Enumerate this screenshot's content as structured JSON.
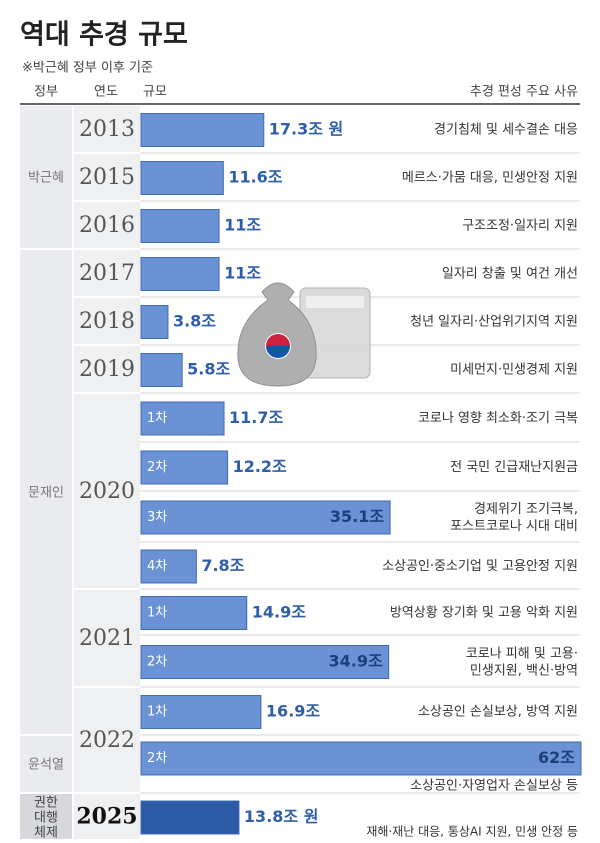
{
  "chart_data": {
    "type": "bar",
    "title": "역대 추경 규모",
    "subtitle": "※박근혜 정부 이후 기준",
    "headers": [
      "정부",
      "연도",
      "규모",
      "추경 편성 주요 사유"
    ],
    "color": "#6a92d4",
    "highlight_color": "#2c5aa6",
    "label_color": "#2f5ea8",
    "rows": [
      {
        "government": "박근혜",
        "year": "2013",
        "round": null,
        "value": 17.3,
        "value_label": "17.3조 원",
        "reason": "경기침체 및 세수결손 대응"
      },
      {
        "government": null,
        "year": "2015",
        "round": null,
        "value": 11.6,
        "value_label": "11.6조",
        "reason": "메르스·가뭄 대응, 민생안정 지원"
      },
      {
        "government": null,
        "year": "2016",
        "round": null,
        "value": 11,
        "value_label": "11조",
        "reason": "구조조정·일자리 지원"
      },
      {
        "government": "문재인",
        "year": "2017",
        "round": null,
        "value": 11,
        "value_label": "11조",
        "reason": "일자리 창출 및 여건 개선"
      },
      {
        "government": null,
        "year": "2018",
        "round": null,
        "value": 3.8,
        "value_label": "3.8조",
        "reason": "청년 일자리·산업위기지역 지원"
      },
      {
        "government": null,
        "year": "2019",
        "round": null,
        "value": 5.8,
        "value_label": "5.8조",
        "reason": "미세먼지·민생경제 지원"
      },
      {
        "government": null,
        "year": "2020",
        "round": "1차",
        "value": 11.7,
        "value_label": "11.7조",
        "reason": "코로나 영향 최소화·조기 극복"
      },
      {
        "government": null,
        "year": null,
        "round": "2차",
        "value": 12.2,
        "value_label": "12.2조",
        "reason": "전 국민 긴급재난지원금"
      },
      {
        "government": null,
        "year": null,
        "round": "3차",
        "value": 35.1,
        "value_label": "35.1조",
        "reason": "경제위기 조기극복,\n포스트코로나 시대 대비"
      },
      {
        "government": null,
        "year": null,
        "round": "4차",
        "value": 7.8,
        "value_label": "7.8조",
        "reason": "소상공인·중소기업 및 고용안정 지원"
      },
      {
        "government": null,
        "year": "2021",
        "round": "1차",
        "value": 14.9,
        "value_label": "14.9조",
        "reason": "방역상황 장기화 및 고용 악화 지원"
      },
      {
        "government": null,
        "year": null,
        "round": "2차",
        "value": 34.9,
        "value_label": "34.9조",
        "reason": "코로나 피해 및 고용·\n민생지원, 백신·방역"
      },
      {
        "government": null,
        "year": "2022",
        "round": "1차",
        "value": 16.9,
        "value_label": "16.9조",
        "reason": "소상공인 손실보상, 방역 지원"
      },
      {
        "government": "윤석열",
        "year": null,
        "round": "2차",
        "value": 62,
        "value_label": "62조",
        "reason": "소상공인·자영업자 손실보상 등"
      },
      {
        "government": "권한\n대행\n체제",
        "year": "2025",
        "round": null,
        "value": 13.8,
        "value_label": "13.8조 원",
        "reason": "재해·재난 대응, 통상AI 지원, 민생 안정 등"
      }
    ]
  }
}
